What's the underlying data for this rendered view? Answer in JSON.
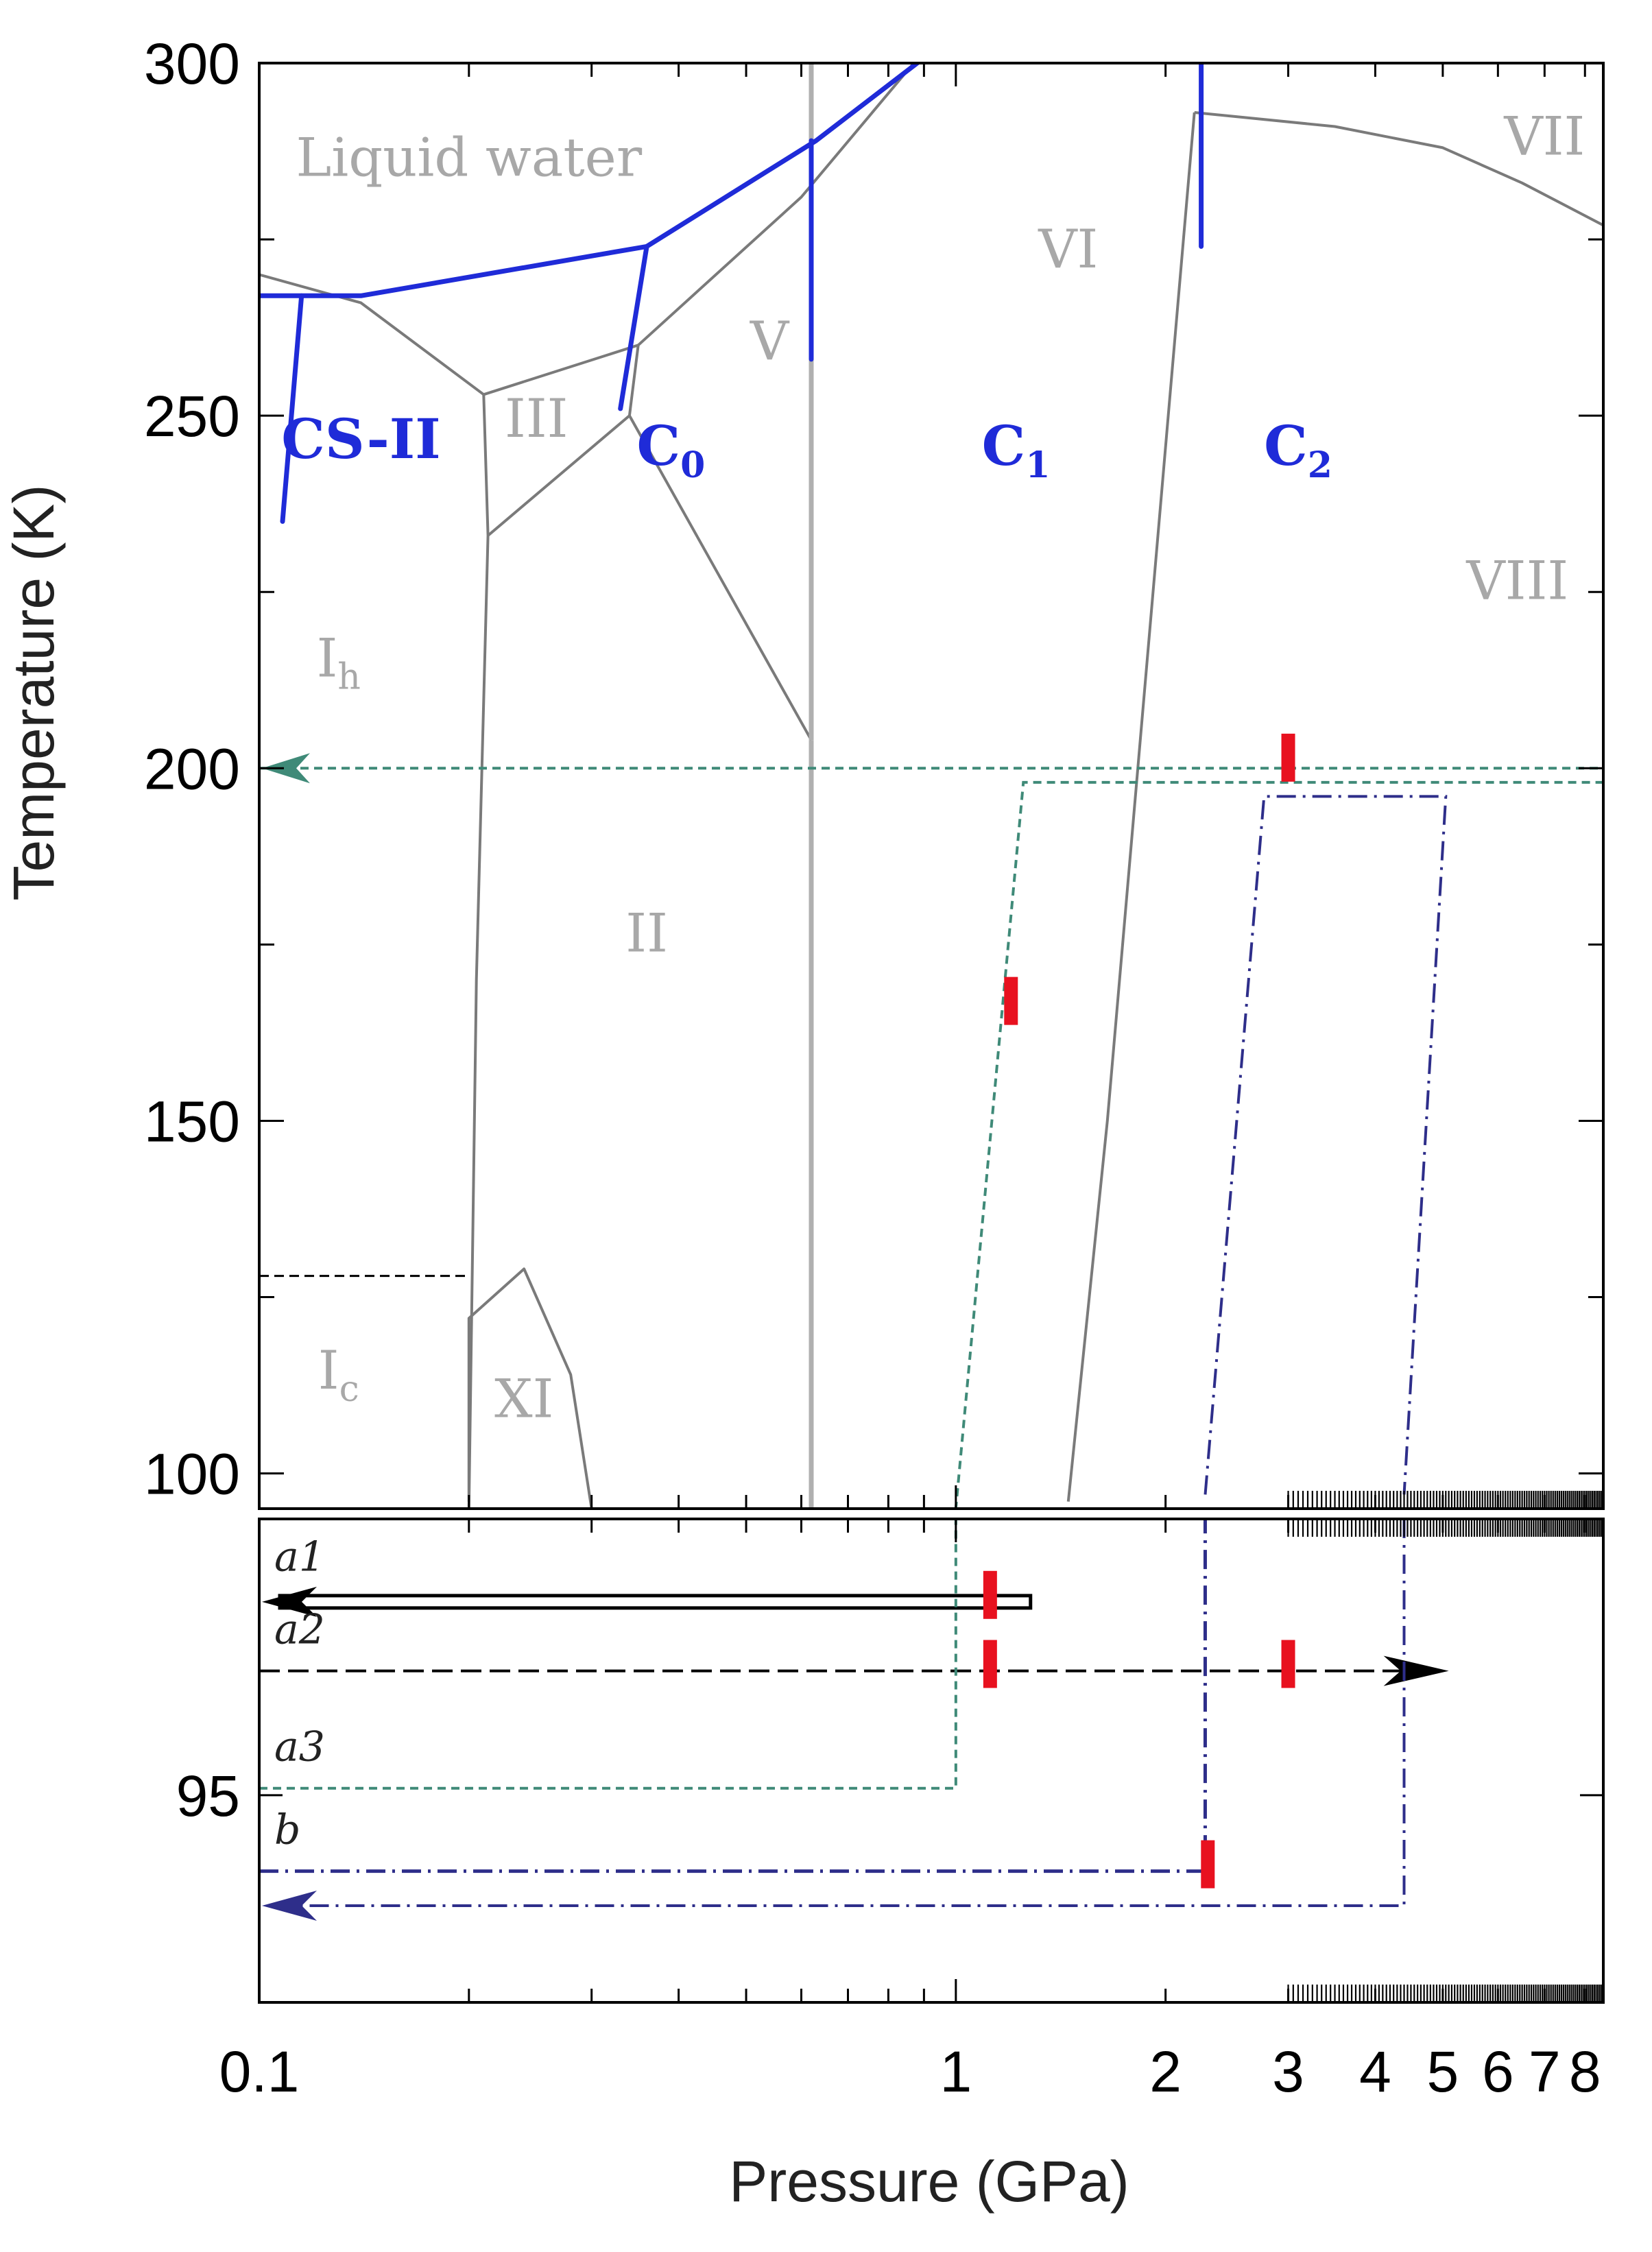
{
  "chart_data": {
    "type": "line",
    "xlabel": "Pressure (GPa)",
    "ylabel": "Temperature (K)",
    "xscale": "log",
    "xlim": [
      0.1,
      8.5
    ],
    "upper_panel_ylim": [
      95,
      300
    ],
    "lower_panel_ylim": [
      92,
      99
    ],
    "x_ticks": [
      {
        "value": 0.1,
        "label": "0.1"
      },
      {
        "value": 1,
        "label": "1"
      },
      {
        "value": 2,
        "label": "2"
      },
      {
        "value": 3,
        "label": "3"
      },
      {
        "value": 4,
        "label": "4"
      },
      {
        "value": 5,
        "label": "5"
      },
      {
        "value": 6,
        "label": "6"
      },
      {
        "value": 7,
        "label": "7"
      },
      {
        "value": 8,
        "label": "8"
      }
    ],
    "upper_y_ticks": [
      {
        "value": 100,
        "label": "100"
      },
      {
        "value": 150,
        "label": "150"
      },
      {
        "value": 200,
        "label": "200"
      },
      {
        "value": 250,
        "label": "250"
      },
      {
        "value": 300,
        "label": "300"
      }
    ],
    "lower_y_ticks": [
      {
        "value": 95,
        "label": "95"
      }
    ],
    "ice_phase_labels": [
      {
        "text": "Liquid water",
        "x": 0.2,
        "y": 284
      },
      {
        "text": "VI",
        "x": 1.45,
        "y": 271
      },
      {
        "text": "VII",
        "x": 7.0,
        "y": 287
      },
      {
        "text": "V",
        "x": 0.54,
        "y": 258
      },
      {
        "text": "III",
        "x": 0.25,
        "y": 247
      },
      {
        "text": "VIII",
        "x": 6.4,
        "y": 224
      },
      {
        "text": "I",
        "sub": "h",
        "x": 0.13,
        "y": 213
      },
      {
        "text": "II",
        "x": 0.36,
        "y": 174
      },
      {
        "text": "I",
        "sub": "c",
        "x": 0.13,
        "y": 112
      },
      {
        "text": "XI",
        "x": 0.24,
        "y": 108
      }
    ],
    "clathrate_labels": [
      {
        "text": "CS-II",
        "sub": "",
        "x": 0.14,
        "y": 244
      },
      {
        "text": "C",
        "sub": "0",
        "x": 0.39,
        "y": 243
      },
      {
        "text": "C",
        "sub": "1",
        "x": 1.22,
        "y": 243
      },
      {
        "text": "C",
        "sub": "2",
        "x": 3.1,
        "y": 243
      }
    ],
    "ice_boundaries": [
      {
        "name": "Ih-liquid",
        "points": [
          [
            0.1,
            270
          ],
          [
            0.14,
            266
          ],
          [
            0.21,
            253
          ]
        ]
      },
      {
        "name": "Ih-III",
        "points": [
          [
            0.21,
            253
          ],
          [
            0.35,
            260
          ]
        ]
      },
      {
        "name": "III-liquid",
        "points": [
          [
            0.35,
            260
          ],
          [
            0.6,
            281
          ],
          [
            0.87,
            300
          ]
        ]
      },
      {
        "name": "Ih-II",
        "points": [
          [
            0.21,
            253
          ],
          [
            0.213,
            233
          ],
          [
            0.205,
            170
          ],
          [
            0.2,
            95
          ]
        ]
      },
      {
        "name": "II-III",
        "points": [
          [
            0.213,
            233
          ],
          [
            0.34,
            250
          ]
        ]
      },
      {
        "name": "III-V",
        "points": [
          [
            0.34,
            250
          ],
          [
            0.35,
            260
          ]
        ]
      },
      {
        "name": "II-V",
        "points": [
          [
            0.34,
            250
          ],
          [
            0.62,
            204
          ]
        ]
      },
      {
        "name": "V-VI",
        "points": [
          [
            0.62,
            204
          ],
          [
            0.62,
            300
          ]
        ]
      },
      {
        "name": "II-VI",
        "points": [
          [
            0.62,
            204
          ],
          [
            0.62,
            95
          ]
        ]
      },
      {
        "name": "VI-VII",
        "points": [
          [
            2.2,
            293
          ],
          [
            1.9,
            220
          ],
          [
            1.65,
            150
          ],
          [
            1.45,
            96
          ]
        ]
      },
      {
        "name": "VII-VIII-top",
        "points": [
          [
            2.2,
            293
          ],
          [
            3.5,
            291
          ],
          [
            5.0,
            288
          ],
          [
            6.5,
            283
          ],
          [
            8.5,
            277
          ]
        ]
      },
      {
        "name": "XI",
        "points": [
          [
            0.2,
            96
          ],
          [
            0.2,
            122
          ],
          [
            0.24,
            129
          ],
          [
            0.28,
            114
          ],
          [
            0.3,
            95
          ]
        ]
      }
    ],
    "clathrate_boundaries": [
      {
        "name": "CS-II-upper",
        "points": [
          [
            0.1,
            267
          ],
          [
            0.14,
            267
          ],
          [
            0.36,
            274
          ],
          [
            0.63,
            289
          ],
          [
            0.88,
            300
          ]
        ]
      },
      {
        "name": "CS-II-C0",
        "points": [
          [
            0.115,
            267
          ],
          [
            0.108,
            235
          ]
        ]
      },
      {
        "name": "C0-C1-left",
        "points": [
          [
            0.36,
            274
          ],
          [
            0.33,
            251
          ]
        ]
      },
      {
        "name": "C0-C1",
        "points": [
          [
            0.62,
            289
          ],
          [
            0.62,
            258
          ]
        ]
      },
      {
        "name": "C1-C2",
        "points": [
          [
            2.25,
            300
          ],
          [
            2.25,
            274
          ]
        ]
      }
    ],
    "dashed_reference": {
      "x": [
        0.1,
        0.2
      ],
      "y": 128
    },
    "paths": [
      {
        "name": "a1",
        "color": "#000000",
        "style": "double-line",
        "arrow": "left",
        "y_lower": 97.8,
        "x": [
          0.1,
          1.28
        ]
      },
      {
        "name": "a2",
        "color": "#000000",
        "style": "long-dash",
        "arrow": "right",
        "y_lower": 96.8,
        "x": [
          0.1,
          5.1
        ]
      },
      {
        "name": "a3",
        "color": "#3f8a78",
        "style": "short-dash",
        "arrow": "left",
        "y_lower": 95.1,
        "upper_points": [
          [
            0.1,
            200
          ],
          [
            8.5,
            200
          ],
          [
            8.5,
            198
          ],
          [
            1.25,
            198
          ],
          [
            1.0,
            95
          ]
        ]
      },
      {
        "name": "b",
        "color": "#2e2e8a",
        "style": "dash-dot",
        "arrow": "left",
        "y_lower": [
          93.9,
          93.4
        ],
        "upper_points": [
          [
            2.28,
            97
          ],
          [
            2.77,
            196
          ],
          [
            5.05,
            196
          ],
          [
            4.4,
            97
          ]
        ]
      }
    ],
    "transition_markers": [
      {
        "panel": "upper",
        "x": 3.0,
        "y": 201.5
      },
      {
        "panel": "upper",
        "x": 1.2,
        "y": 167
      },
      {
        "panel": "lower",
        "x": 1.12,
        "y": 97.9
      },
      {
        "panel": "lower",
        "x": 1.12,
        "y": 96.9
      },
      {
        "panel": "lower",
        "x": 3.0,
        "y": 96.9
      },
      {
        "panel": "lower",
        "x": 2.3,
        "y": 94.0
      }
    ],
    "path_labels": [
      "a1",
      "a2",
      "a3",
      "b"
    ],
    "colors": {
      "ice_boundary": "#7a7a7a",
      "clathrate_boundary": "#1f2bd8",
      "ice_label": "#a8a8a8",
      "clathrate_label": "#1f2bd8",
      "marker": "#e8111f",
      "path_a3": "#3f8a78",
      "path_b": "#2e2e8a"
    }
  }
}
